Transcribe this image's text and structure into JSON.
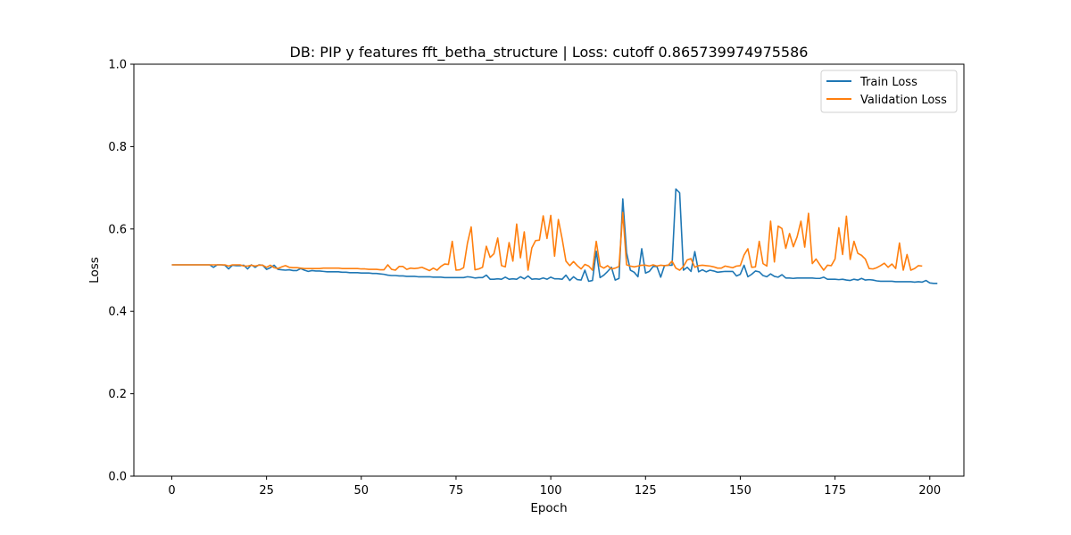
{
  "chart_data": {
    "type": "line",
    "title": "DB: PIP y features fft_betha_structure | Loss: cutoff 0.865739974975586",
    "xlabel": "Epoch",
    "ylabel": "Loss",
    "xlim": [
      -10,
      209
    ],
    "ylim": [
      0,
      1
    ],
    "xticks": [
      0,
      25,
      50,
      75,
      100,
      125,
      150,
      175,
      200
    ],
    "yticks": [
      0.0,
      0.2,
      0.4,
      0.6,
      0.8,
      1.0
    ],
    "xtick_labels": [
      "0",
      "25",
      "50",
      "75",
      "100",
      "125",
      "150",
      "175",
      "200"
    ],
    "ytick_labels": [
      "0.0",
      "0.2",
      "0.4",
      "0.6",
      "0.8",
      "1.0"
    ],
    "grid": false,
    "legend_position": "top-right",
    "series": [
      {
        "name": "Train Loss",
        "color": "#1f77b4",
        "x_start": 0,
        "values": [
          0.513,
          0.513,
          0.513,
          0.513,
          0.513,
          0.513,
          0.513,
          0.513,
          0.513,
          0.513,
          0.513,
          0.507,
          0.513,
          0.513,
          0.512,
          0.503,
          0.512,
          0.511,
          0.511,
          0.512,
          0.503,
          0.513,
          0.507,
          0.513,
          0.512,
          0.502,
          0.506,
          0.512,
          0.502,
          0.501,
          0.5,
          0.501,
          0.499,
          0.499,
          0.504,
          0.5,
          0.497,
          0.499,
          0.498,
          0.498,
          0.497,
          0.496,
          0.496,
          0.496,
          0.496,
          0.495,
          0.495,
          0.494,
          0.494,
          0.494,
          0.493,
          0.493,
          0.493,
          0.492,
          0.492,
          0.491,
          0.49,
          0.488,
          0.487,
          0.487,
          0.486,
          0.486,
          0.485,
          0.485,
          0.485,
          0.484,
          0.484,
          0.484,
          0.484,
          0.483,
          0.483,
          0.483,
          0.482,
          0.482,
          0.482,
          0.482,
          0.482,
          0.482,
          0.484,
          0.483,
          0.481,
          0.482,
          0.482,
          0.488,
          0.478,
          0.478,
          0.479,
          0.478,
          0.483,
          0.478,
          0.479,
          0.478,
          0.484,
          0.479,
          0.486,
          0.478,
          0.479,
          0.478,
          0.481,
          0.478,
          0.483,
          0.479,
          0.479,
          0.478,
          0.488,
          0.475,
          0.484,
          0.477,
          0.476,
          0.5,
          0.473,
          0.475,
          0.546,
          0.482,
          0.488,
          0.497,
          0.507,
          0.476,
          0.48,
          0.673,
          0.542,
          0.5,
          0.495,
          0.484,
          0.552,
          0.493,
          0.497,
          0.509,
          0.509,
          0.483,
          0.511,
          0.512,
          0.512,
          0.697,
          0.688,
          0.5,
          0.507,
          0.497,
          0.545,
          0.496,
          0.501,
          0.496,
          0.5,
          0.498,
          0.495,
          0.496,
          0.497,
          0.497,
          0.497,
          0.486,
          0.49,
          0.512,
          0.484,
          0.49,
          0.498,
          0.496,
          0.487,
          0.484,
          0.491,
          0.485,
          0.483,
          0.489,
          0.481,
          0.481,
          0.48,
          0.481,
          0.481,
          0.481,
          0.481,
          0.481,
          0.48,
          0.48,
          0.483,
          0.478,
          0.478,
          0.478,
          0.477,
          0.478,
          0.476,
          0.475,
          0.478,
          0.476,
          0.48,
          0.476,
          0.477,
          0.476,
          0.474,
          0.473,
          0.473,
          0.473,
          0.473,
          0.472,
          0.472,
          0.472,
          0.472,
          0.472,
          0.471,
          0.472,
          0.471,
          0.475,
          0.469,
          0.468,
          0.468
        ]
      },
      {
        "name": "Validation Loss",
        "color": "#ff7f0e",
        "x_start": 0,
        "values": [
          0.513,
          0.513,
          0.513,
          0.513,
          0.513,
          0.513,
          0.513,
          0.513,
          0.513,
          0.513,
          0.513,
          0.513,
          0.513,
          0.513,
          0.513,
          0.51,
          0.513,
          0.513,
          0.513,
          0.51,
          0.51,
          0.512,
          0.51,
          0.512,
          0.512,
          0.507,
          0.512,
          0.506,
          0.504,
          0.508,
          0.511,
          0.507,
          0.506,
          0.506,
          0.505,
          0.504,
          0.504,
          0.504,
          0.504,
          0.504,
          0.505,
          0.505,
          0.505,
          0.505,
          0.505,
          0.504,
          0.504,
          0.504,
          0.504,
          0.504,
          0.503,
          0.503,
          0.502,
          0.502,
          0.502,
          0.501,
          0.501,
          0.513,
          0.502,
          0.5,
          0.509,
          0.509,
          0.502,
          0.505,
          0.504,
          0.505,
          0.507,
          0.503,
          0.499,
          0.505,
          0.5,
          0.509,
          0.515,
          0.514,
          0.57,
          0.5,
          0.501,
          0.506,
          0.565,
          0.605,
          0.501,
          0.503,
          0.507,
          0.558,
          0.531,
          0.54,
          0.578,
          0.511,
          0.508,
          0.567,
          0.522,
          0.612,
          0.53,
          0.593,
          0.5,
          0.554,
          0.572,
          0.573,
          0.632,
          0.577,
          0.633,
          0.534,
          0.623,
          0.576,
          0.522,
          0.511,
          0.521,
          0.511,
          0.503,
          0.514,
          0.51,
          0.5,
          0.57,
          0.51,
          0.505,
          0.511,
          0.503,
          0.505,
          0.509,
          0.64,
          0.513,
          0.51,
          0.508,
          0.51,
          0.512,
          0.512,
          0.51,
          0.513,
          0.51,
          0.512,
          0.511,
          0.512,
          0.522,
          0.505,
          0.5,
          0.509,
          0.525,
          0.528,
          0.507,
          0.511,
          0.512,
          0.511,
          0.51,
          0.508,
          0.505,
          0.505,
          0.51,
          0.508,
          0.506,
          0.51,
          0.511,
          0.537,
          0.552,
          0.507,
          0.508,
          0.57,
          0.516,
          0.51,
          0.619,
          0.52,
          0.607,
          0.601,
          0.553,
          0.589,
          0.557,
          0.581,
          0.619,
          0.556,
          0.638,
          0.516,
          0.527,
          0.513,
          0.5,
          0.512,
          0.511,
          0.527,
          0.603,
          0.538,
          0.631,
          0.526,
          0.57,
          0.541,
          0.536,
          0.527,
          0.504,
          0.503,
          0.506,
          0.511,
          0.517,
          0.507,
          0.515,
          0.504,
          0.566,
          0.5,
          0.538,
          0.5,
          0.504,
          0.511,
          0.51
        ]
      }
    ]
  }
}
